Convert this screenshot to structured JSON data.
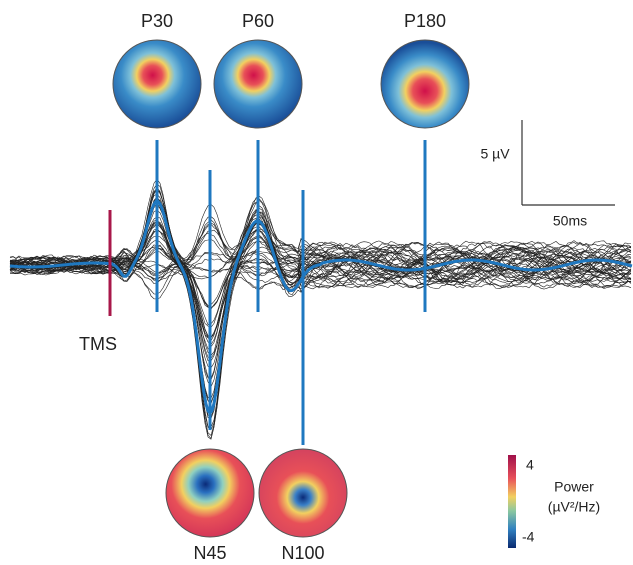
{
  "peaks": [
    "P30",
    "P60",
    "P180",
    "N45",
    "N100"
  ],
  "stimulus": "TMS",
  "scale_bar": {
    "amplitude": "5 µV",
    "time": "50ms"
  },
  "colorbar": {
    "title": "Power",
    "unit": "(µV²/Hz)",
    "max": 4,
    "min": -4
  }
}
